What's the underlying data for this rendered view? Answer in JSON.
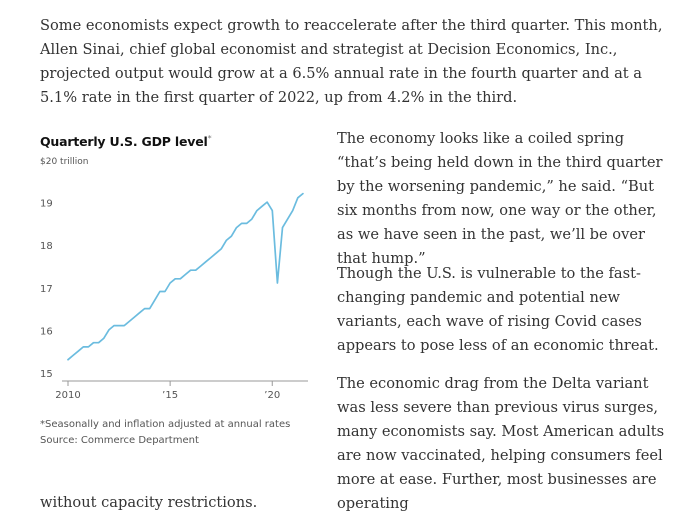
{
  "article": {
    "intro": "Some economists expect growth to reaccelerate after the third quarter. This month, Allen Sinai, chief global economist and strategist at Decision Economics, Inc., projected output would grow at a 6.5% annual rate in the fourth quarter and at a 5.1% rate in the first quarter of 2022, up from 4.2% in the third.",
    "right_p1": "The economy looks like a coiled spring “that’s being held down in the third quarter by the worsening pandemic,” he said. “But six months from now, one way or the other, as we have seen in the past, we’ll be over that hump.”",
    "right_p2": "Though the U.S. is vulnerable to the fast-changing pandemic and potential new variants, each wave of rising Covid cases appears to pose less of an economic threat.",
    "right_p3": "The economic drag from the Delta variant was less severe than previous virus surges, many economists say. Most American adults are now vaccinated, helping consumers feel more at ease. Further, most businesses are operating",
    "tail": "without capacity restrictions."
  },
  "chart": {
    "title": "Quarterly U.S. GDP level",
    "title_marker": "*",
    "unit_label": "$20 trillion",
    "footnote": "*Seasonally and inflation adjusted at annual rates",
    "source": "Source: Commerce Department",
    "line_color": "#6bbcdf"
  },
  "chart_data": {
    "type": "line",
    "title": "Quarterly U.S. GDP level",
    "ylabel": "$ trillion",
    "ylim": [
      15,
      20
    ],
    "xlim": [
      2010,
      2021.75
    ],
    "y_ticks": [
      15,
      16,
      17,
      18,
      19,
      20
    ],
    "y_tick_labels": [
      "15",
      "16",
      "17",
      "18",
      "19",
      "$20 trillion"
    ],
    "x_ticks": [
      2010,
      2015,
      2020
    ],
    "x_tick_labels": [
      "2010",
      "’15",
      "’20"
    ],
    "grid": false,
    "series": [
      {
        "name": "",
        "x": [
          2010.0,
          2010.25,
          2010.5,
          2010.75,
          2011.0,
          2011.25,
          2011.5,
          2011.75,
          2012.0,
          2012.25,
          2012.5,
          2012.75,
          2013.0,
          2013.25,
          2013.5,
          2013.75,
          2014.0,
          2014.25,
          2014.5,
          2014.75,
          2015.0,
          2015.25,
          2015.5,
          2015.75,
          2016.0,
          2016.25,
          2016.5,
          2016.75,
          2017.0,
          2017.25,
          2017.5,
          2017.75,
          2018.0,
          2018.25,
          2018.5,
          2018.75,
          2019.0,
          2019.25,
          2019.5,
          2019.75,
          2020.0,
          2020.25,
          2020.5,
          2020.75,
          2021.0,
          2021.25,
          2021.5
        ],
        "values": [
          15.5,
          15.6,
          15.7,
          15.8,
          15.8,
          15.9,
          15.9,
          16.0,
          16.2,
          16.3,
          16.3,
          16.3,
          16.4,
          16.5,
          16.6,
          16.7,
          16.7,
          16.9,
          17.1,
          17.1,
          17.3,
          17.4,
          17.4,
          17.5,
          17.6,
          17.6,
          17.7,
          17.8,
          17.9,
          18.0,
          18.1,
          18.3,
          18.4,
          18.6,
          18.7,
          18.7,
          18.8,
          19.0,
          19.1,
          19.2,
          19.0,
          17.3,
          18.6,
          18.8,
          19.0,
          19.3,
          19.4
        ]
      }
    ]
  }
}
